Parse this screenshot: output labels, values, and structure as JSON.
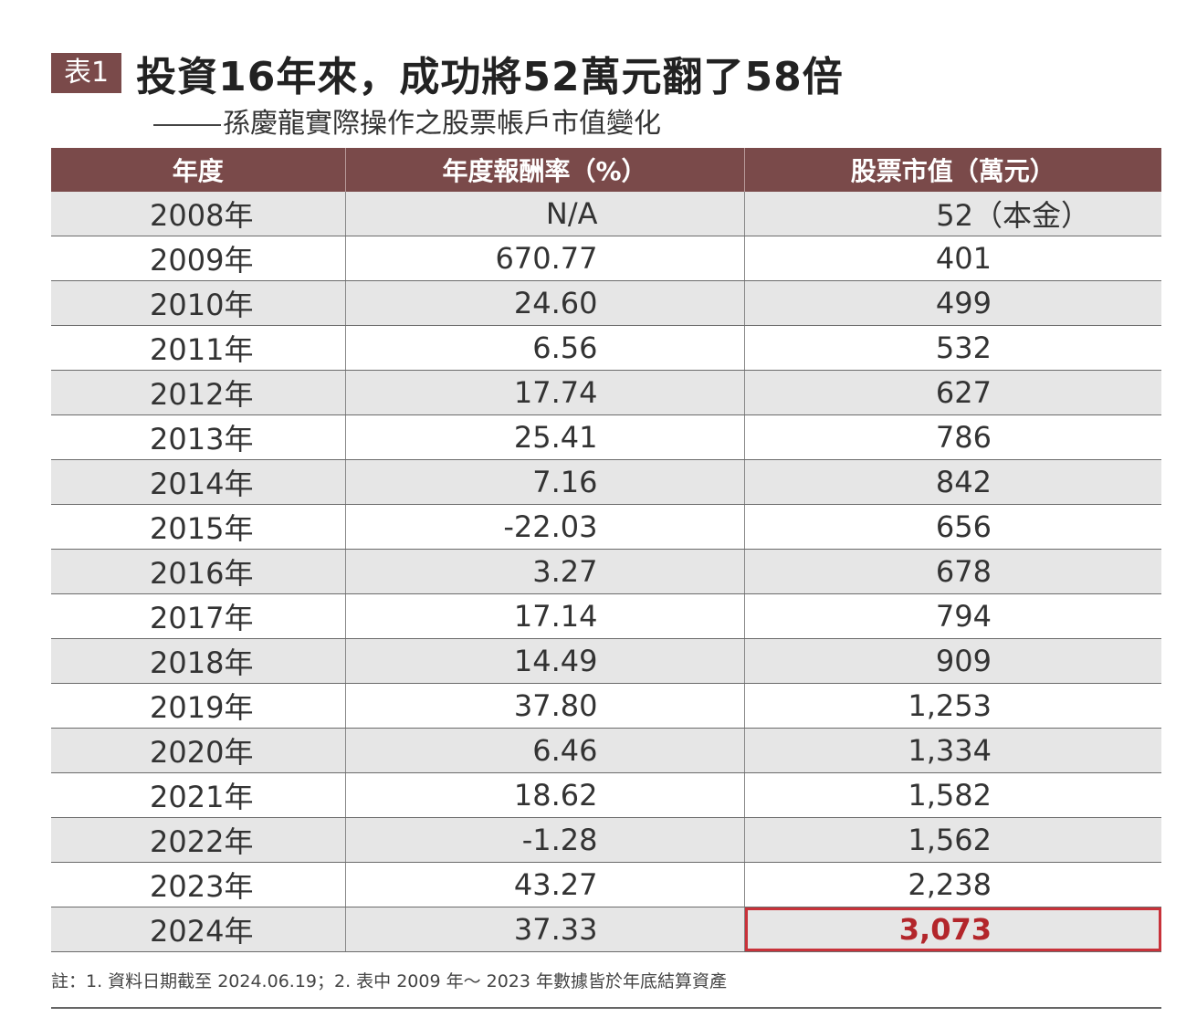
{
  "table_tag": "表1",
  "title": "投資16年來，成功將52萬元翻了58倍",
  "subtitle": "孫慶龍實際操作之股票帳戶市值變化",
  "headers": [
    "年度",
    "年度報酬率（%）",
    "股票市值（萬元）"
  ],
  "rows": [
    {
      "year": "2008年",
      "rate": "N/A",
      "value": "52（本金）"
    },
    {
      "year": "2009年",
      "rate": "670.77",
      "value": "401"
    },
    {
      "year": "2010年",
      "rate": "24.60",
      "value": "499"
    },
    {
      "year": "2011年",
      "rate": "6.56",
      "value": "532"
    },
    {
      "year": "2012年",
      "rate": "17.74",
      "value": "627"
    },
    {
      "year": "2013年",
      "rate": "25.41",
      "value": "786"
    },
    {
      "year": "2014年",
      "rate": "7.16",
      "value": "842"
    },
    {
      "year": "2015年",
      "rate": "-22.03",
      "value": "656"
    },
    {
      "year": "2016年",
      "rate": "3.27",
      "value": "678"
    },
    {
      "year": "2017年",
      "rate": "17.14",
      "value": "794"
    },
    {
      "year": "2018年",
      "rate": "14.49",
      "value": "909"
    },
    {
      "year": "2019年",
      "rate": "37.80",
      "value": "1,253"
    },
    {
      "year": "2020年",
      "rate": "6.46",
      "value": "1,334"
    },
    {
      "year": "2021年",
      "rate": "18.62",
      "value": "1,582"
    },
    {
      "year": "2022年",
      "rate": "-1.28",
      "value": "1,562"
    },
    {
      "year": "2023年",
      "rate": "43.27",
      "value": "2,238"
    },
    {
      "year": "2024年",
      "rate": "37.33",
      "value": "3,073"
    }
  ],
  "footnote": "註：1. 資料日期截至 2024.06.19；2. 表中 2009 年～ 2023 年數據皆於年底結算資產",
  "colors": {
    "header_bg": "#7a4a4a",
    "stripe_bg": "#e6e6e6",
    "highlight_text": "#b3262b",
    "highlight_border": "#c8323a"
  }
}
